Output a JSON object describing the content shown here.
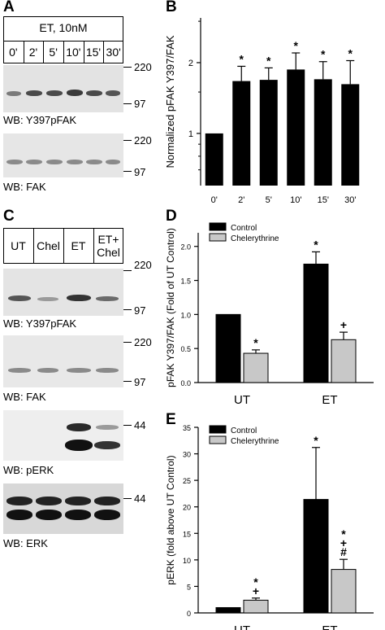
{
  "panel_letters": {
    "a": "A",
    "b": "B",
    "c": "C",
    "d": "D",
    "e": "E"
  },
  "panelA": {
    "treatment_label": "ET, 10nM",
    "lanes": [
      "0'",
      "2'",
      "5'",
      "10'",
      "15'",
      "30'"
    ],
    "blot1": {
      "wb_label": "WB: Y397pFAK",
      "mw_top": "220",
      "mw_bottom": "97"
    },
    "blot2": {
      "wb_label": "WB: FAK",
      "mw_top": "220",
      "mw_bottom": "97"
    }
  },
  "panelC": {
    "lanes": [
      "UT",
      "Chel",
      "ET",
      "ET+\nChel"
    ],
    "blot1": {
      "wb_label": "WB: Y397pFAK",
      "mw_top": "220",
      "mw_bottom": "97"
    },
    "blot2": {
      "wb_label": "WB: FAK",
      "mw_top": "220",
      "mw_bottom": "97"
    },
    "blot3": {
      "wb_label": "WB: pERK",
      "mw_top": "44"
    },
    "blot4": {
      "wb_label": "WB: ERK",
      "mw_top": "44"
    }
  },
  "chart_data": [
    {
      "panel": "B",
      "type": "bar",
      "ylabel": "Normalized pFAK Y397/FAK",
      "yscale": "log",
      "ylim": [
        0.6,
        3.1
      ],
      "yticks": [
        1,
        2
      ],
      "categories": [
        "0'",
        "2'",
        "5'",
        "10'",
        "15'",
        "30'"
      ],
      "values": [
        1.0,
        1.67,
        1.69,
        1.87,
        1.7,
        1.62
      ],
      "errors": [
        0,
        0.26,
        0.21,
        0.33,
        0.32,
        0.42
      ],
      "markers": [
        "",
        "*",
        "*",
        "*",
        "*",
        "*"
      ],
      "color": "#000000"
    },
    {
      "panel": "D",
      "type": "bar",
      "ylabel": "pFAK Y397/FAK (Fold of UT Control)",
      "ylim": [
        0,
        2.2
      ],
      "yticks": [
        "0.0",
        "0.5",
        "1.0",
        "1.5",
        "2.0"
      ],
      "categories": [
        "UT",
        "ET"
      ],
      "series": [
        {
          "name": "Control",
          "color": "#000000",
          "values": [
            1.0,
            1.74
          ],
          "errors": [
            0,
            0.18
          ],
          "markers": [
            "",
            "*"
          ]
        },
        {
          "name": "Chelerythrine",
          "color": "#c8c8c8",
          "values": [
            0.43,
            0.63
          ],
          "errors": [
            0.05,
            0.11
          ],
          "markers": [
            "*",
            "+"
          ]
        }
      ],
      "legend": "top-left"
    },
    {
      "panel": "E",
      "type": "bar",
      "ylabel": "pERK (fold above UT Control)",
      "ylim": [
        0,
        35
      ],
      "yticks": [
        "0",
        "5",
        "10",
        "15",
        "20",
        "25",
        "30",
        "35"
      ],
      "categories": [
        "UT",
        "ET"
      ],
      "series": [
        {
          "name": "Control",
          "color": "#000000",
          "values": [
            1.0,
            21.4
          ],
          "errors": [
            0,
            9.8
          ],
          "markers": [
            "",
            "*"
          ]
        },
        {
          "name": "Chelerythrine",
          "color": "#c8c8c8",
          "values": [
            2.4,
            8.2
          ],
          "errors": [
            0.4,
            1.9
          ],
          "markers": [
            "*\n+",
            "*\n+\n#"
          ]
        }
      ],
      "legend": "top-left"
    }
  ]
}
